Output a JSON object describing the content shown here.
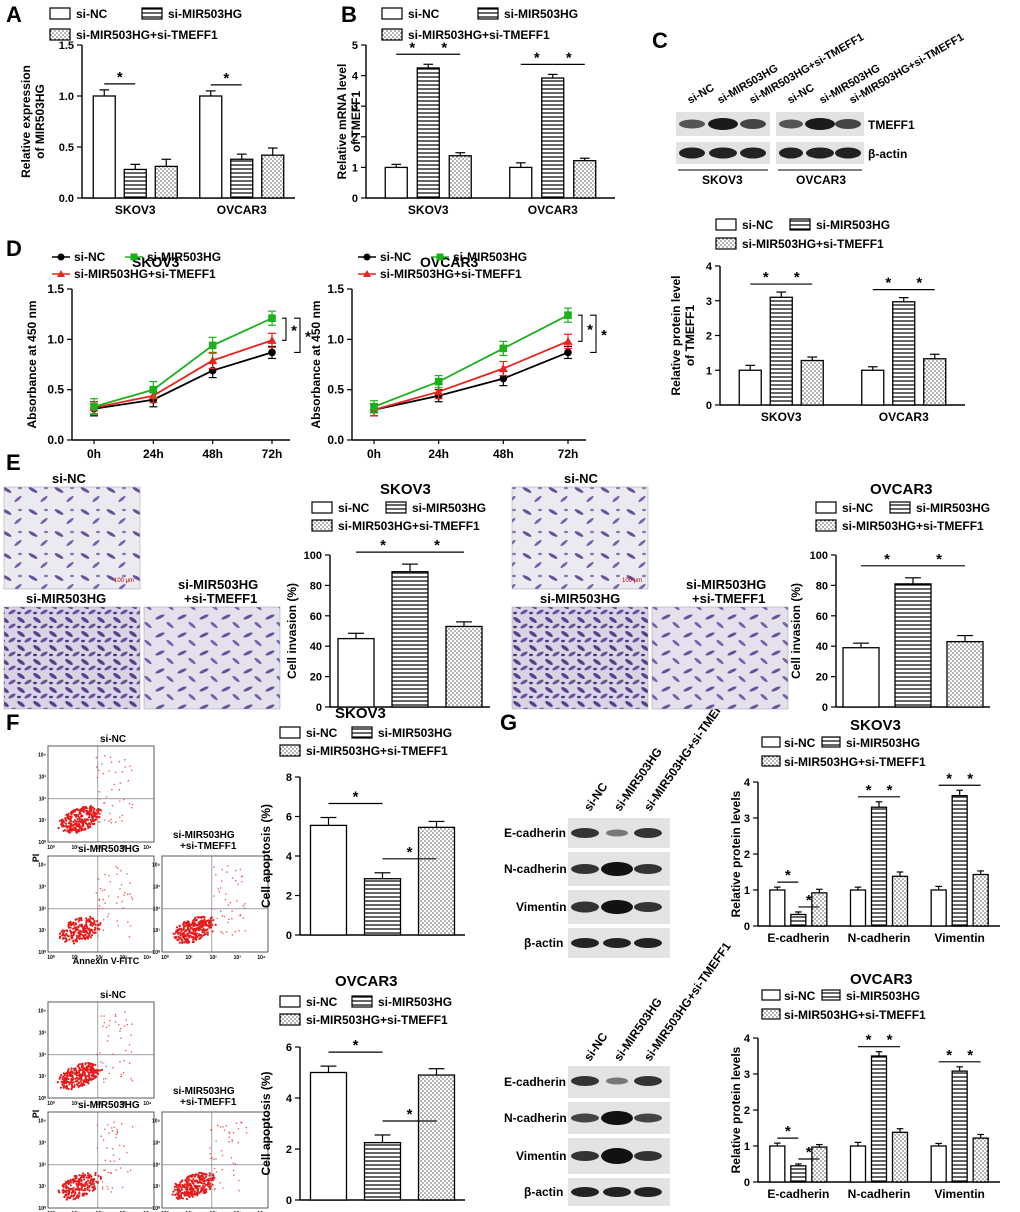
{
  "groups": {
    "a": "si-NC",
    "b": "si-MIR503HG",
    "c": "si-MIR503HG+si-TMEFF1"
  },
  "colors": {
    "red": "#e8231c",
    "green": "#1cb01c",
    "black": "#000000",
    "purple": "#6a4f9a"
  },
  "panels": {
    "A": "A",
    "B": "B",
    "C": "C",
    "D": "D",
    "E": "E",
    "F": "F",
    "G": "G"
  },
  "sig": "*",
  "blotC": {
    "lanes": [
      "si-NC",
      "si-MIR503HG",
      "si-MIR503HG+si-TMEFF1",
      "si-NC",
      "si-MIR503HG",
      "si-MIR503HG+si-TMEFF1"
    ],
    "rows": [
      "TMEFF1",
      "β-actin"
    ],
    "cells": [
      "SKOV3",
      "OVCAR3"
    ]
  },
  "blotG": {
    "lanes": [
      "si-NC",
      "si-MIR503HG",
      "si-MIR503HG+si-TMEFF1"
    ],
    "rows": [
      "E-cadherin",
      "N-cadherin",
      "Vimentin",
      "β-actin"
    ]
  },
  "micro": {
    "si_nc": "si-NC",
    "si_mir": "si-MIR503HG",
    "si_mir_t1": "si-MIR503HG",
    "si_mir_t2": "+si-TMEFF1",
    "scale": "100 μm"
  },
  "flow": {
    "ylabel": "PI",
    "xlabel": "Annexin V-FITC",
    "si_nc": "si-NC",
    "si_mir": "si-MIR503HG",
    "si_mir_t1": "si-MIR503HG",
    "si_mir_t2": "+si-TMEFF1",
    "ticks": [
      "10⁰",
      "10¹",
      "10²",
      "10³",
      "10⁴"
    ]
  },
  "chart_data": [
    {
      "id": "A",
      "type": "bar",
      "ylabel": [
        "Relative expression",
        "of MIR503HG"
      ],
      "categories": [
        "SKOV3",
        "OVCAR3"
      ],
      "ylim": [
        0,
        1.5
      ],
      "yticks": [
        "0.0",
        "0.5",
        "1.0",
        "1.5"
      ],
      "series": [
        {
          "name": "si-NC",
          "values": [
            1.0,
            1.0
          ],
          "err": [
            0.06,
            0.05
          ]
        },
        {
          "name": "si-MIR503HG",
          "values": [
            0.28,
            0.38
          ],
          "err": [
            0.05,
            0.05
          ]
        },
        {
          "name": "si-MIR503HG+si-TMEFF1",
          "values": [
            0.31,
            0.42
          ],
          "err": [
            0.07,
            0.07
          ]
        }
      ],
      "sig": [
        {
          "cat": 0,
          "from": 0,
          "to": 1
        },
        {
          "cat": 1,
          "from": 0,
          "to": 1
        }
      ]
    },
    {
      "id": "B",
      "type": "bar",
      "ylabel": [
        "Relative mRNA level",
        "of TMEFF1"
      ],
      "categories": [
        "SKOV3",
        "OVCAR3"
      ],
      "ylim": [
        0,
        5
      ],
      "yticks": [
        "0",
        "1",
        "2",
        "3",
        "4",
        "5"
      ],
      "series": [
        {
          "name": "si-NC",
          "values": [
            1.0,
            1.0
          ],
          "err": [
            0.1,
            0.15
          ]
        },
        {
          "name": "si-MIR503HG",
          "values": [
            4.25,
            3.92
          ],
          "err": [
            0.12,
            0.12
          ]
        },
        {
          "name": "si-MIR503HG+si-TMEFF1",
          "values": [
            1.38,
            1.22
          ],
          "err": [
            0.1,
            0.08
          ]
        }
      ],
      "sig": [
        {
          "cat": 0,
          "from": 0,
          "to": 1
        },
        {
          "cat": 0,
          "from": 1,
          "to": 2
        },
        {
          "cat": 1,
          "from": 0,
          "to": 1
        },
        {
          "cat": 1,
          "from": 1,
          "to": 2
        }
      ]
    },
    {
      "id": "C",
      "type": "bar",
      "ylabel": [
        "Relative protein level",
        "of TMEFF1"
      ],
      "categories": [
        "SKOV3",
        "OVCAR3"
      ],
      "ylim": [
        0,
        4
      ],
      "yticks": [
        "0",
        "1",
        "2",
        "3",
        "4"
      ],
      "series": [
        {
          "name": "si-NC",
          "values": [
            1.0,
            1.0
          ],
          "err": [
            0.14,
            0.1
          ]
        },
        {
          "name": "si-MIR503HG",
          "values": [
            3.1,
            2.97
          ],
          "err": [
            0.15,
            0.12
          ]
        },
        {
          "name": "si-MIR503HG+si-TMEFF1",
          "values": [
            1.28,
            1.33
          ],
          "err": [
            0.1,
            0.13
          ]
        }
      ],
      "sig": [
        {
          "cat": 0,
          "from": 0,
          "to": 1
        },
        {
          "cat": 0,
          "from": 1,
          "to": 2
        },
        {
          "cat": 1,
          "from": 0,
          "to": 1
        },
        {
          "cat": 1,
          "from": 1,
          "to": 2
        }
      ]
    },
    {
      "id": "D1",
      "type": "line",
      "title": "SKOV3",
      "ylabel": "Absorbance at 450 nm",
      "x": [
        "0h",
        "24h",
        "48h",
        "72h"
      ],
      "ylim": [
        0,
        1.5
      ],
      "yticks": [
        "0.0",
        "0.5",
        "1.0",
        "1.5"
      ],
      "series": [
        {
          "name": "si-NC",
          "values": [
            0.31,
            0.4,
            0.69,
            0.87
          ],
          "err": [
            0.07,
            0.07,
            0.07,
            0.06
          ]
        },
        {
          "name": "si-MIR503HG",
          "values": [
            0.33,
            0.5,
            0.94,
            1.21
          ],
          "err": [
            0.08,
            0.08,
            0.08,
            0.07
          ]
        },
        {
          "name": "si-MIR503HG+si-TMEFF1",
          "values": [
            0.32,
            0.44,
            0.79,
            0.99
          ],
          "err": [
            0.06,
            0.07,
            0.08,
            0.07
          ]
        }
      ]
    },
    {
      "id": "D2",
      "type": "line",
      "title": "OVCAR3",
      "ylabel": "Absorbance at 450 nm",
      "x": [
        "0h",
        "24h",
        "48h",
        "72h"
      ],
      "ylim": [
        0,
        1.5
      ],
      "yticks": [
        "0.0",
        "0.5",
        "1.0",
        "1.5"
      ],
      "series": [
        {
          "name": "si-NC",
          "values": [
            0.3,
            0.44,
            0.61,
            0.87
          ],
          "err": [
            0.06,
            0.06,
            0.07,
            0.06
          ]
        },
        {
          "name": "si-MIR503HG",
          "values": [
            0.33,
            0.58,
            0.91,
            1.24
          ],
          "err": [
            0.06,
            0.06,
            0.07,
            0.07
          ]
        },
        {
          "name": "si-MIR503HG+si-TMEFF1",
          "values": [
            0.3,
            0.48,
            0.71,
            0.98
          ],
          "err": [
            0.06,
            0.07,
            0.07,
            0.07
          ]
        }
      ]
    },
    {
      "id": "E1",
      "type": "bar",
      "title": "SKOV3",
      "ylabel": [
        "Cell invasion (%)"
      ],
      "categories": [
        ""
      ],
      "ylim": [
        0,
        100
      ],
      "yticks": [
        "0",
        "20",
        "40",
        "60",
        "80",
        "100"
      ],
      "series": [
        {
          "name": "si-NC",
          "values": [
            45
          ],
          "err": [
            3.5
          ]
        },
        {
          "name": "si-MIR503HG",
          "values": [
            89
          ],
          "err": [
            5
          ]
        },
        {
          "name": "si-MIR503HG+si-TMEFF1",
          "values": [
            53
          ],
          "err": [
            3
          ]
        }
      ],
      "sig": [
        {
          "cat": 0,
          "from": 0,
          "to": 1
        },
        {
          "cat": 0,
          "from": 1,
          "to": 2
        }
      ]
    },
    {
      "id": "E2",
      "type": "bar",
      "title": "OVCAR3",
      "ylabel": [
        "Cell invasion (%)"
      ],
      "categories": [
        ""
      ],
      "ylim": [
        0,
        100
      ],
      "yticks": [
        "0",
        "20",
        "40",
        "60",
        "80",
        "100"
      ],
      "series": [
        {
          "name": "si-NC",
          "values": [
            39
          ],
          "err": [
            3
          ]
        },
        {
          "name": "si-MIR503HG",
          "values": [
            81
          ],
          "err": [
            4
          ]
        },
        {
          "name": "si-MIR503HG+si-TMEFF1",
          "values": [
            43
          ],
          "err": [
            4
          ]
        }
      ],
      "sig": [
        {
          "cat": 0,
          "from": 0,
          "to": 1
        },
        {
          "cat": 0,
          "from": 1,
          "to": 2
        }
      ]
    },
    {
      "id": "F1",
      "type": "bar",
      "title": "SKOV3",
      "ylabel": [
        "Cell apoptosis (%)"
      ],
      "categories": [
        ""
      ],
      "ylim": [
        0,
        8
      ],
      "yticks": [
        "0",
        "2",
        "4",
        "6",
        "8"
      ],
      "series": [
        {
          "name": "si-NC",
          "values": [
            5.55
          ],
          "err": [
            0.4
          ]
        },
        {
          "name": "si-MIR503HG",
          "values": [
            2.85
          ],
          "err": [
            0.3
          ]
        },
        {
          "name": "si-MIR503HG+si-TMEFF1",
          "values": [
            5.45
          ],
          "err": [
            0.3
          ]
        }
      ],
      "sig": [
        {
          "cat": 0,
          "from": 0,
          "to": 1
        },
        {
          "cat": 0,
          "from": 1,
          "to": 2
        }
      ]
    },
    {
      "id": "F2",
      "type": "bar",
      "title": "OVCAR3",
      "ylabel": [
        "Cell apoptosis (%)"
      ],
      "categories": [
        ""
      ],
      "ylim": [
        0,
        6
      ],
      "yticks": [
        "0",
        "2",
        "4",
        "6"
      ],
      "series": [
        {
          "name": "si-NC",
          "values": [
            5.0
          ],
          "err": [
            0.25
          ]
        },
        {
          "name": "si-MIR503HG",
          "values": [
            2.25
          ],
          "err": [
            0.3
          ]
        },
        {
          "name": "si-MIR503HG+si-TMEFF1",
          "values": [
            4.9
          ],
          "err": [
            0.25
          ]
        }
      ],
      "sig": [
        {
          "cat": 0,
          "from": 0,
          "to": 1
        },
        {
          "cat": 0,
          "from": 1,
          "to": 2
        }
      ]
    },
    {
      "id": "G1",
      "type": "bar",
      "title": "SKOV3",
      "ylabel": [
        "Relative protein levels"
      ],
      "categories": [
        "E-cadherin",
        "N-cadherin",
        "Vimentin"
      ],
      "ylim": [
        0,
        4
      ],
      "yticks": [
        "0",
        "1",
        "2",
        "3",
        "4"
      ],
      "series": [
        {
          "name": "si-NC",
          "values": [
            1.0,
            1.0,
            1.0
          ],
          "err": [
            0.08,
            0.08,
            0.1
          ]
        },
        {
          "name": "si-MIR503HG",
          "values": [
            0.32,
            3.3,
            3.62
          ],
          "err": [
            0.07,
            0.15,
            0.15
          ]
        },
        {
          "name": "si-MIR503HG+si-TMEFF1",
          "values": [
            0.92,
            1.38,
            1.43
          ],
          "err": [
            0.1,
            0.12,
            0.1
          ]
        }
      ],
      "sig": [
        {
          "cat": 0,
          "from": 0,
          "to": 1
        },
        {
          "cat": 0,
          "from": 1,
          "to": 2
        },
        {
          "cat": 1,
          "from": 0,
          "to": 1
        },
        {
          "cat": 1,
          "from": 1,
          "to": 2
        },
        {
          "cat": 2,
          "from": 0,
          "to": 1
        },
        {
          "cat": 2,
          "from": 1,
          "to": 2
        }
      ]
    },
    {
      "id": "G2",
      "type": "bar",
      "title": "OVCAR3",
      "ylabel": [
        "Relative protein levels"
      ],
      "categories": [
        "E-cadherin",
        "N-cadherin",
        "Vimentin"
      ],
      "ylim": [
        0,
        4
      ],
      "yticks": [
        "0",
        "1",
        "2",
        "3",
        "4"
      ],
      "series": [
        {
          "name": "si-NC",
          "values": [
            1.0,
            1.0,
            1.0
          ],
          "err": [
            0.08,
            0.1,
            0.07
          ]
        },
        {
          "name": "si-MIR503HG",
          "values": [
            0.45,
            3.5,
            3.08
          ],
          "err": [
            0.05,
            0.12,
            0.12
          ]
        },
        {
          "name": "si-MIR503HG+si-TMEFF1",
          "values": [
            0.97,
            1.38,
            1.22
          ],
          "err": [
            0.07,
            0.1,
            0.1
          ]
        }
      ],
      "sig": [
        {
          "cat": 0,
          "from": 0,
          "to": 1
        },
        {
          "cat": 0,
          "from": 1,
          "to": 2
        },
        {
          "cat": 1,
          "from": 0,
          "to": 1
        },
        {
          "cat": 1,
          "from": 1,
          "to": 2
        },
        {
          "cat": 2,
          "from": 0,
          "to": 1
        },
        {
          "cat": 2,
          "from": 1,
          "to": 2
        }
      ]
    }
  ]
}
